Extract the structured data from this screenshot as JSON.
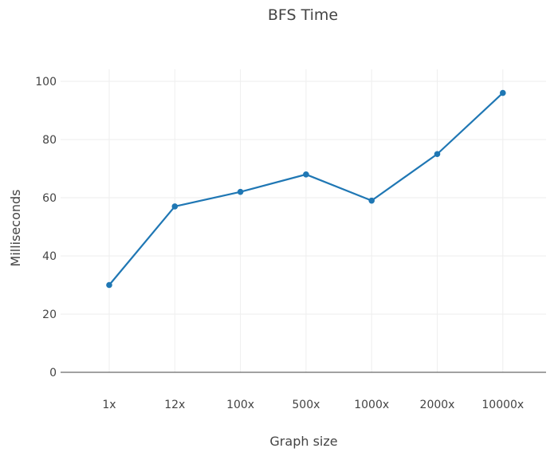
{
  "chart_data": {
    "type": "line",
    "title": "BFS Time",
    "xlabel": "Graph size",
    "ylabel": "Milliseconds",
    "categories": [
      "1x",
      "12x",
      "100x",
      "500x",
      "1000x",
      "2000x",
      "10000x"
    ],
    "series": [
      {
        "values": [
          30,
          57,
          62,
          68,
          59,
          75,
          96
        ],
        "color": "#1f77b4"
      }
    ],
    "ylim": [
      0,
      100
    ],
    "yticks": [
      0,
      20,
      40,
      60,
      80,
      100
    ],
    "grid": true,
    "legend": "none"
  }
}
